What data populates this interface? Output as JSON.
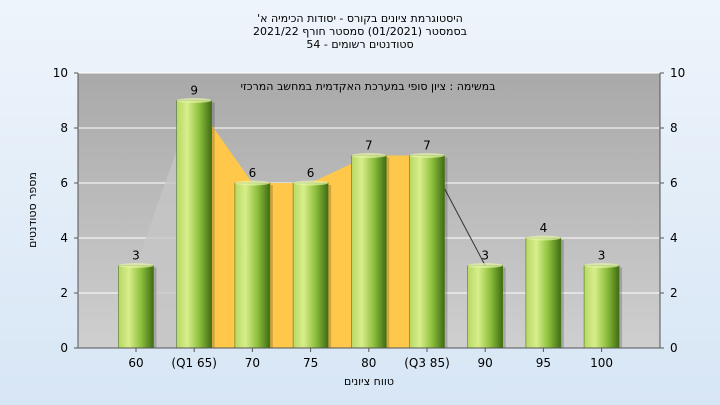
{
  "chart_data": {
    "type": "bar",
    "title_lines": [
      "היסטוגרמת ציונים בקורס - יסודות הכימיה א'",
      "בסמסטר (01/2021) סמסטר חורף 2021/22",
      "סטודנטים רשומים - 54"
    ],
    "annotation": "במשימה : ציון סופי במערכת האקדמית במחשב המרכזי",
    "xlabel": "טווח ציונים",
    "ylabel": "מספר סטודנטים",
    "categories": [
      "60",
      "(Q1 65)",
      "70",
      "75",
      "80",
      "(Q3 85)",
      "90",
      "95",
      "100"
    ],
    "values": [
      3,
      9,
      6,
      6,
      7,
      7,
      3,
      4,
      3
    ],
    "ylim": [
      0,
      10
    ],
    "yticks": [
      0,
      2,
      4,
      6,
      8,
      10
    ],
    "grid": true,
    "colors": {
      "bar_light": "#d8ee8a",
      "bar_mid": "#8cbf3c",
      "bar_dark": "#3f6b14",
      "iqr_fill": "#ffc84a",
      "plot_bg": "#b9b9b9"
    }
  }
}
